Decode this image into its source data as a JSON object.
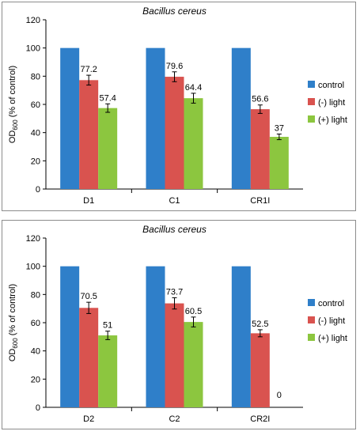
{
  "chart_data": [
    {
      "type": "bar",
      "title": "Bacillus cereus",
      "ylabel": {
        "main": "OD",
        "sub": "600",
        "rest": " (% of control)"
      },
      "ylim": [
        0,
        120
      ],
      "yticks": [
        0,
        20,
        40,
        60,
        80,
        100,
        120
      ],
      "grid": false,
      "legend_position": "right",
      "categories": [
        "D1",
        "C1",
        "CR1I"
      ],
      "series": [
        {
          "name": "control",
          "color": "#2f7fc9",
          "values": [
            100,
            100,
            100
          ],
          "errors": [
            0,
            0,
            0
          ],
          "labels": [
            "",
            "",
            ""
          ]
        },
        {
          "name": "(-) light",
          "color": "#d9534f",
          "values": [
            77.2,
            79.6,
            56.6
          ],
          "errors": [
            3.5,
            3.5,
            3
          ],
          "labels": [
            "77.2",
            "79.6",
            "56.6"
          ]
        },
        {
          "name": "(+) light",
          "color": "#8cc63f",
          "values": [
            57.4,
            64.4,
            37
          ],
          "errors": [
            3,
            3.5,
            2
          ],
          "labels": [
            "57.4",
            "64.4",
            "37"
          ]
        }
      ]
    },
    {
      "type": "bar",
      "title": "Bacillus cereus",
      "ylabel": {
        "main": "OD",
        "sub": "600",
        "rest": " (% of control)"
      },
      "ylim": [
        0,
        120
      ],
      "yticks": [
        0,
        20,
        40,
        60,
        80,
        100,
        120
      ],
      "grid": false,
      "legend_position": "right",
      "categories": [
        "D2",
        "C2",
        "CR2I"
      ],
      "series": [
        {
          "name": "control",
          "color": "#2f7fc9",
          "values": [
            100,
            100,
            100
          ],
          "errors": [
            0,
            0,
            0
          ],
          "labels": [
            "",
            "",
            ""
          ]
        },
        {
          "name": "(-) light",
          "color": "#d9534f",
          "values": [
            70.5,
            73.7,
            52.5
          ],
          "errors": [
            4,
            4,
            2.5
          ],
          "labels": [
            "70.5",
            "73.7",
            "52.5"
          ]
        },
        {
          "name": "(+) light",
          "color": "#8cc63f",
          "values": [
            51,
            60.5,
            0
          ],
          "errors": [
            3,
            3.5,
            0
          ],
          "labels": [
            "51",
            "60.5",
            "0"
          ]
        }
      ]
    }
  ]
}
